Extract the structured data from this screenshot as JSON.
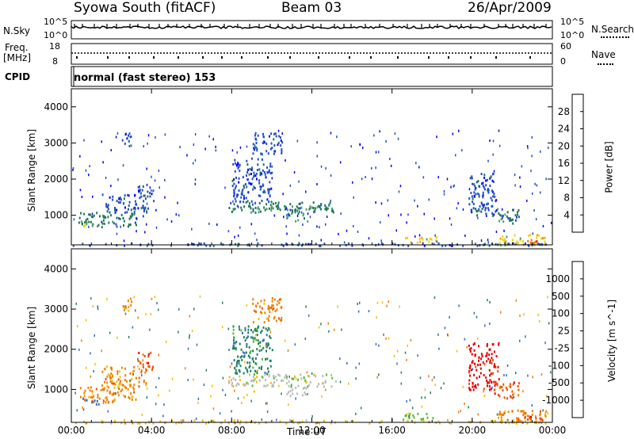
{
  "header": {
    "station": "Syowa South (fitACF)",
    "beam": "Beam 03",
    "date": "26/Apr/2009"
  },
  "nsky_panel": {
    "left_label": "N.Sky",
    "right_label": "N.Search",
    "left_ticks": [
      "10^5",
      "10^0"
    ],
    "right_ticks": [
      "10^5",
      "10^0"
    ]
  },
  "freq_panel": {
    "left_label": "Freq.",
    "left_unit": "[MHz]",
    "right_label": "Nave",
    "left_ticks": [
      "18",
      "8"
    ],
    "right_ticks": [
      "60",
      "0"
    ]
  },
  "cpid": {
    "label": "CPID",
    "text": "normal (fast stereo) 153"
  },
  "colors": {
    "power_scale": [
      "#0000ff",
      "#2050c8",
      "#207850",
      "#50a070",
      "#f0d000",
      "#f0a000",
      "#f07000",
      "#e02000"
    ],
    "velocity_scale": [
      "#2020c0",
      "#3070c0",
      "#208060",
      "#50c030",
      "#bbbbbb",
      "#f0c000",
      "#f08000",
      "#f05000",
      "#e00000"
    ]
  },
  "chart_data": [
    {
      "type": "heatmap",
      "name": "power",
      "xlabel": "",
      "ylabel": "Slant Range [km]",
      "x_ticks": [
        "00:00",
        "04:00",
        "08:00",
        "12:00",
        "16:00",
        "20:00",
        "00:00"
      ],
      "x_tick_hours": [
        0,
        4,
        8,
        12,
        16,
        20,
        24
      ],
      "xlim": [
        0,
        24
      ],
      "y_ticks": [
        1000,
        2000,
        3000,
        4000
      ],
      "ylim": [
        180,
        4500
      ],
      "colorbar": {
        "label": "Power [dB]",
        "ticks": [
          4,
          8,
          12,
          16,
          20,
          24,
          28
        ],
        "range": [
          0,
          32
        ]
      },
      "regions": [
        {
          "t0": 0.3,
          "t1": 3.2,
          "r0": 700,
          "r1": 1100,
          "level": 2
        },
        {
          "t0": 1.5,
          "t1": 3.8,
          "r0": 1100,
          "r1": 1600,
          "level": 1
        },
        {
          "t0": 3.3,
          "t1": 4.1,
          "r0": 1500,
          "r1": 1950,
          "level": 1
        },
        {
          "t0": 0.5,
          "t1": 1.4,
          "r0": 650,
          "r1": 800,
          "level": 3
        },
        {
          "t0": 7.8,
          "t1": 13.2,
          "r0": 1100,
          "r1": 1400,
          "level": 2
        },
        {
          "t0": 9.5,
          "t1": 12.2,
          "r0": 1150,
          "r1": 1280,
          "level": 3
        },
        {
          "t0": 10.7,
          "t1": 11.8,
          "r0": 850,
          "r1": 1100,
          "level": 3
        },
        {
          "t0": 8.0,
          "t1": 10.0,
          "r0": 1400,
          "r1": 2600,
          "level": 1
        },
        {
          "t0": 9.0,
          "t1": 10.5,
          "r0": 2700,
          "r1": 3300,
          "level": 1
        },
        {
          "t0": 2.5,
          "t1": 3.0,
          "r0": 2900,
          "r1": 3300,
          "level": 1
        },
        {
          "t0": 19.8,
          "t1": 21.3,
          "r0": 1000,
          "r1": 2200,
          "level": 1
        },
        {
          "t0": 21.0,
          "t1": 22.3,
          "r0": 800,
          "r1": 1200,
          "level": 2
        },
        {
          "t0": 21.3,
          "t1": 23.7,
          "r0": 200,
          "r1": 500,
          "level": 4
        },
        {
          "t0": 22.0,
          "t1": 23.5,
          "r0": 200,
          "r1": 350,
          "level": 6
        },
        {
          "t0": 16.5,
          "t1": 18.2,
          "r0": 250,
          "r1": 420,
          "level": 4
        },
        {
          "t0": 0.0,
          "t1": 24.0,
          "r0": 180,
          "r1": 260,
          "level": 1
        }
      ]
    },
    {
      "type": "heatmap",
      "name": "velocity",
      "xlabel": "Time UT",
      "ylabel": "Slant Range [km]",
      "x_ticks": [
        "00:00",
        "04:00",
        "08:00",
        "12:00",
        "16:00",
        "20:00",
        "00:00"
      ],
      "x_tick_hours": [
        0,
        4,
        8,
        12,
        16,
        20,
        24
      ],
      "xlim": [
        0,
        24
      ],
      "y_ticks": [
        1000,
        2000,
        3000,
        4000
      ],
      "ylim": [
        180,
        4500
      ],
      "colorbar": {
        "label": "Velocity [m s^-1]",
        "ticks": [
          "1000",
          "500",
          "100",
          "25",
          "-25",
          "-100",
          "-500",
          "-1000"
        ]
      },
      "regions": [
        {
          "t0": 0.3,
          "t1": 3.2,
          "r0": 700,
          "r1": 1100,
          "level": 6
        },
        {
          "t0": 1.5,
          "t1": 3.8,
          "r0": 1100,
          "r1": 1600,
          "level": 6
        },
        {
          "t0": 3.3,
          "t1": 4.1,
          "r0": 1500,
          "r1": 1950,
          "level": 7
        },
        {
          "t0": 0.5,
          "t1": 1.4,
          "r0": 650,
          "r1": 800,
          "level": 1
        },
        {
          "t0": 7.8,
          "t1": 13.2,
          "r0": 1100,
          "r1": 1400,
          "level": 4
        },
        {
          "t0": 10.7,
          "t1": 11.8,
          "r0": 850,
          "r1": 1100,
          "level": 4
        },
        {
          "t0": 8.0,
          "t1": 10.0,
          "r0": 1400,
          "r1": 2600,
          "level": 2
        },
        {
          "t0": 9.0,
          "t1": 10.5,
          "r0": 2700,
          "r1": 3300,
          "level": 6
        },
        {
          "t0": 2.5,
          "t1": 3.0,
          "r0": 2900,
          "r1": 3300,
          "level": 6
        },
        {
          "t0": 19.8,
          "t1": 21.3,
          "r0": 1000,
          "r1": 2200,
          "level": 8
        },
        {
          "t0": 21.0,
          "t1": 22.3,
          "r0": 800,
          "r1": 1200,
          "level": 7
        },
        {
          "t0": 21.3,
          "t1": 23.7,
          "r0": 200,
          "r1": 500,
          "level": 6
        },
        {
          "t0": 22.0,
          "t1": 23.5,
          "r0": 200,
          "r1": 350,
          "level": 7
        },
        {
          "t0": 16.5,
          "t1": 18.2,
          "r0": 250,
          "r1": 420,
          "level": 3
        },
        {
          "t0": 0.0,
          "t1": 24.0,
          "r0": 180,
          "r1": 260,
          "level": 5
        }
      ]
    }
  ]
}
